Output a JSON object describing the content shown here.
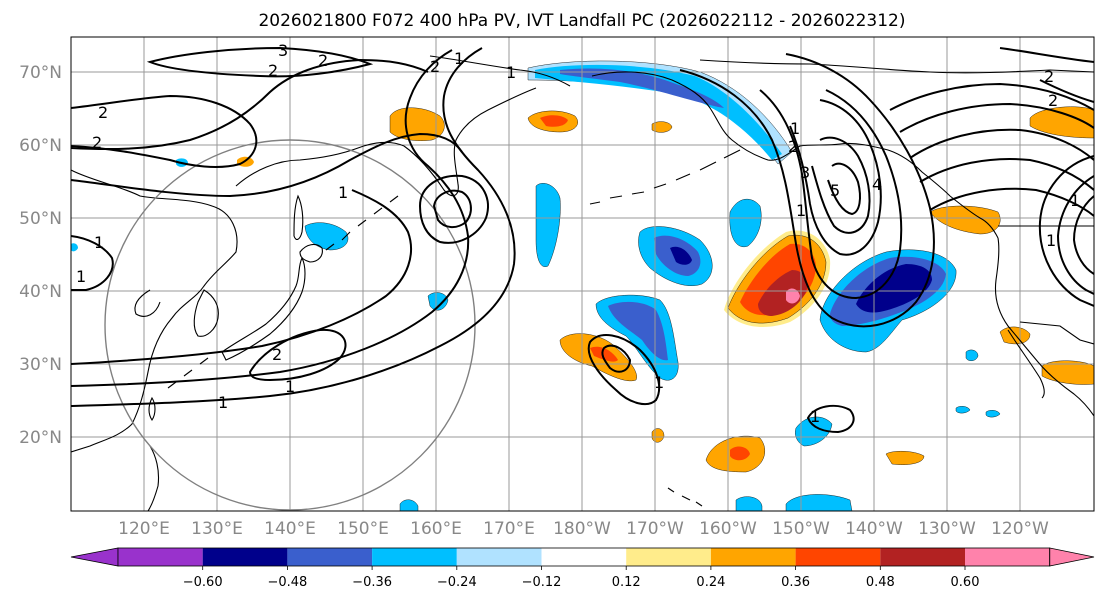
{
  "title": "2026021800 F072 400 hPa PV, IVT Landfall PC (2026022112 - 2026022312)",
  "latitude_labels": [
    "70°N",
    "60°N",
    "50°N",
    "40°N",
    "30°N",
    "20°N"
  ],
  "longitude_labels": [
    "120°E",
    "130°E",
    "140°E",
    "150°E",
    "160°E",
    "170°E",
    "180°W",
    "170°W",
    "160°W",
    "150°W",
    "140°W",
    "130°W",
    "120°W"
  ],
  "colorbar": {
    "ticks": [
      "−0.60",
      "−0.48",
      "−0.36",
      "−0.24",
      "−0.12",
      "0.12",
      "0.24",
      "0.36",
      "0.48",
      "0.60"
    ],
    "colors": [
      "#9932cc",
      "#00008b",
      "#3a5fcd",
      "#00bfff",
      "#b0e2ff",
      "#ffffff",
      "#ffec8b",
      "#ffa500",
      "#ff4500",
      "#b22222",
      "#ff82ab"
    ]
  },
  "contour_labels": [
    "1",
    "2",
    "3",
    "4",
    "5"
  ]
}
